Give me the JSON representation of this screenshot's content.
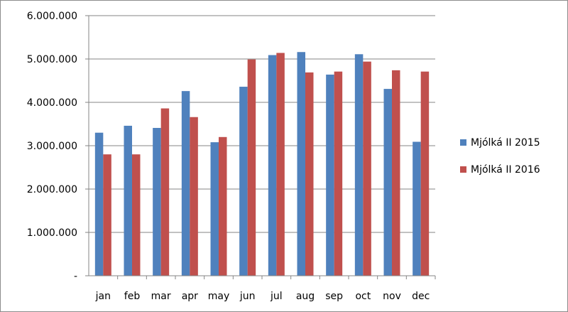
{
  "chart_data": {
    "type": "bar",
    "title": "",
    "xlabel": "",
    "ylabel": "",
    "categories": [
      "jan",
      "feb",
      "mar",
      "apr",
      "may",
      "jun",
      "jul",
      "aug",
      "sep",
      "oct",
      "nov",
      "dec"
    ],
    "ylim": [
      0,
      6000000
    ],
    "yticks": [
      {
        "value": 0,
        "label": "-"
      },
      {
        "value": 1000000,
        "label": "1.000.000"
      },
      {
        "value": 2000000,
        "label": "2.000.000"
      },
      {
        "value": 3000000,
        "label": "3.000.000"
      },
      {
        "value": 4000000,
        "label": "4.000.000"
      },
      {
        "value": 5000000,
        "label": "5.000.000"
      },
      {
        "value": 6000000,
        "label": "6.000.000"
      }
    ],
    "grid": true,
    "legend_position": "right",
    "series": [
      {
        "name": "Mjólká II 2015",
        "color": "#4f81bd",
        "values": [
          3300000,
          3460000,
          3410000,
          4260000,
          3080000,
          4360000,
          5090000,
          5160000,
          4640000,
          5110000,
          4310000,
          3090000
        ]
      },
      {
        "name": "Mjólká II 2016",
        "color": "#c0504d",
        "values": [
          2800000,
          2800000,
          3860000,
          3660000,
          3200000,
          4990000,
          5140000,
          4690000,
          4710000,
          4940000,
          4740000,
          4710000
        ]
      }
    ]
  }
}
